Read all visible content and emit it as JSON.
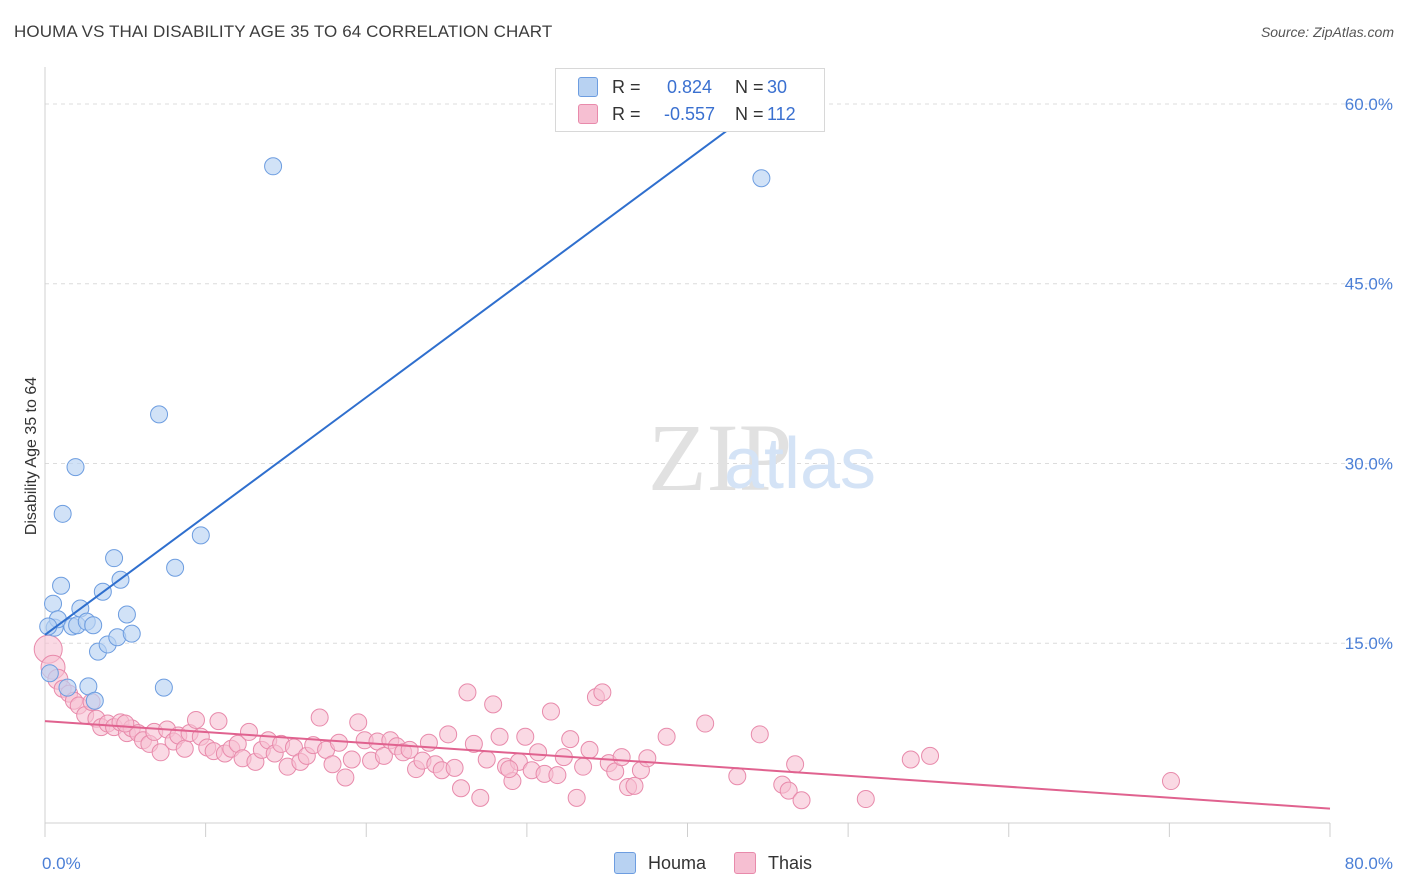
{
  "header": {
    "title": "HOUMA VS THAI DISABILITY AGE 35 TO 64 CORRELATION CHART",
    "source": "Source: ZipAtlas.com"
  },
  "watermark": {
    "zip": "ZIP",
    "atlas": "atlas"
  },
  "legend_top": {
    "houma": {
      "r_label": "R =",
      "r_value": "0.824",
      "n_label": "N =",
      "n_value": "30"
    },
    "thais": {
      "r_label": "R =",
      "r_value": "-0.557",
      "n_label": "N =",
      "n_value": "112"
    }
  },
  "legend_bottom": {
    "houma": "Houma",
    "thais": "Thais"
  },
  "colors": {
    "houma_fill": "#b8d2f2",
    "houma_stroke": "#6d9de0",
    "houma_line": "#2f6fce",
    "thais_fill": "#f6bfd2",
    "thais_stroke": "#e88aab",
    "thais_line": "#e0628f",
    "axis_text": "#4b7fd6",
    "grid": "#dcdcdc"
  },
  "chart_data": {
    "type": "scatter",
    "title": "HOUMA VS THAI DISABILITY AGE 35 TO 64 CORRELATION CHART",
    "xlabel": "",
    "ylabel": "Disability Age 35 to 64",
    "xlim": [
      0,
      80
    ],
    "ylim": [
      0,
      62
    ],
    "x_tick_labels": [
      "0.0%",
      "80.0%"
    ],
    "y_ticks": [
      15,
      30,
      45,
      60
    ],
    "y_tick_labels": [
      "15.0%",
      "30.0%",
      "45.0%",
      "60.0%"
    ],
    "grid": "horizontal dashed",
    "legend": "top-center",
    "series": [
      {
        "name": "Houma",
        "r": 0.824,
        "n": 30,
        "trend": [
          [
            0,
            15.7
          ],
          [
            44.5,
            59.8
          ]
        ],
        "points": [
          [
            0.3,
            12.5
          ],
          [
            0.5,
            18.3
          ],
          [
            0.6,
            16.3
          ],
          [
            0.8,
            17.0
          ],
          [
            1.0,
            19.8
          ],
          [
            1.1,
            25.8
          ],
          [
            1.4,
            11.3
          ],
          [
            1.7,
            16.4
          ],
          [
            1.9,
            29.7
          ],
          [
            2.0,
            16.5
          ],
          [
            2.2,
            17.9
          ],
          [
            2.6,
            16.8
          ],
          [
            2.7,
            11.4
          ],
          [
            3.0,
            16.5
          ],
          [
            3.1,
            10.2
          ],
          [
            3.3,
            14.3
          ],
          [
            3.6,
            19.3
          ],
          [
            3.9,
            14.9
          ],
          [
            4.3,
            22.1
          ],
          [
            4.5,
            15.5
          ],
          [
            4.7,
            20.3
          ],
          [
            5.1,
            17.4
          ],
          [
            5.4,
            15.8
          ],
          [
            7.1,
            34.1
          ],
          [
            7.4,
            11.3
          ],
          [
            8.1,
            21.3
          ],
          [
            9.7,
            24.0
          ],
          [
            14.2,
            54.8
          ],
          [
            44.6,
            53.8
          ],
          [
            0.2,
            16.4
          ]
        ]
      },
      {
        "name": "Thais",
        "r": -0.557,
        "n": 112,
        "trend": [
          [
            0,
            8.5
          ],
          [
            80,
            1.2
          ]
        ],
        "points": [
          [
            0.2,
            14.5
          ],
          [
            0.5,
            13.0
          ],
          [
            0.8,
            12.0
          ],
          [
            1.1,
            11.2
          ],
          [
            1.5,
            10.8
          ],
          [
            1.8,
            10.2
          ],
          [
            2.1,
            9.8
          ],
          [
            2.5,
            9.0
          ],
          [
            2.9,
            10.1
          ],
          [
            3.2,
            8.7
          ],
          [
            3.5,
            8.0
          ],
          [
            3.9,
            8.3
          ],
          [
            4.3,
            8.0
          ],
          [
            4.7,
            8.4
          ],
          [
            5.1,
            7.5
          ],
          [
            5.4,
            7.9
          ],
          [
            5.8,
            7.5
          ],
          [
            6.1,
            6.9
          ],
          [
            6.5,
            6.6
          ],
          [
            6.8,
            7.6
          ],
          [
            7.2,
            5.9
          ],
          [
            7.6,
            7.8
          ],
          [
            8.0,
            6.8
          ],
          [
            8.3,
            7.3
          ],
          [
            8.7,
            6.2
          ],
          [
            9.0,
            7.5
          ],
          [
            9.4,
            8.6
          ],
          [
            9.7,
            7.2
          ],
          [
            10.1,
            6.3
          ],
          [
            10.5,
            6.0
          ],
          [
            10.8,
            8.5
          ],
          [
            11.2,
            5.8
          ],
          [
            11.6,
            6.2
          ],
          [
            12.0,
            6.6
          ],
          [
            12.3,
            5.4
          ],
          [
            12.7,
            7.6
          ],
          [
            13.1,
            5.1
          ],
          [
            13.5,
            6.1
          ],
          [
            13.9,
            6.9
          ],
          [
            14.3,
            5.8
          ],
          [
            14.7,
            6.6
          ],
          [
            15.1,
            4.7
          ],
          [
            15.5,
            6.3
          ],
          [
            15.9,
            5.1
          ],
          [
            16.3,
            5.6
          ],
          [
            16.7,
            6.5
          ],
          [
            17.1,
            8.8
          ],
          [
            17.5,
            6.1
          ],
          [
            17.9,
            4.9
          ],
          [
            18.3,
            6.7
          ],
          [
            18.7,
            3.8
          ],
          [
            19.1,
            5.3
          ],
          [
            19.5,
            8.4
          ],
          [
            19.9,
            6.9
          ],
          [
            20.3,
            5.2
          ],
          [
            20.7,
            6.8
          ],
          [
            21.1,
            5.6
          ],
          [
            21.5,
            6.9
          ],
          [
            21.9,
            6.4
          ],
          [
            22.3,
            5.9
          ],
          [
            22.7,
            6.1
          ],
          [
            23.1,
            4.5
          ],
          [
            23.5,
            5.2
          ],
          [
            23.9,
            6.7
          ],
          [
            24.3,
            4.9
          ],
          [
            24.7,
            4.4
          ],
          [
            25.1,
            7.4
          ],
          [
            25.5,
            4.6
          ],
          [
            25.9,
            2.9
          ],
          [
            26.3,
            10.9
          ],
          [
            26.7,
            6.6
          ],
          [
            27.1,
            2.1
          ],
          [
            27.5,
            5.3
          ],
          [
            27.9,
            9.9
          ],
          [
            28.3,
            7.2
          ],
          [
            28.7,
            4.7
          ],
          [
            29.1,
            3.5
          ],
          [
            29.5,
            5.1
          ],
          [
            29.9,
            7.2
          ],
          [
            30.3,
            4.4
          ],
          [
            30.7,
            5.9
          ],
          [
            31.1,
            4.1
          ],
          [
            31.5,
            9.3
          ],
          [
            31.9,
            4.0
          ],
          [
            32.3,
            5.5
          ],
          [
            32.7,
            7.0
          ],
          [
            33.1,
            2.1
          ],
          [
            33.5,
            4.7
          ],
          [
            33.9,
            6.1
          ],
          [
            34.3,
            10.5
          ],
          [
            34.7,
            10.9
          ],
          [
            35.1,
            5.0
          ],
          [
            35.5,
            4.3
          ],
          [
            35.9,
            5.5
          ],
          [
            36.3,
            3.0
          ],
          [
            36.7,
            3.1
          ],
          [
            37.1,
            4.4
          ],
          [
            37.5,
            5.4
          ],
          [
            38.7,
            7.2
          ],
          [
            41.1,
            8.3
          ],
          [
            43.1,
            3.9
          ],
          [
            44.5,
            7.4
          ],
          [
            45.9,
            3.2
          ],
          [
            46.3,
            2.7
          ],
          [
            46.7,
            4.9
          ],
          [
            47.1,
            1.9
          ],
          [
            51.1,
            2.0
          ],
          [
            53.9,
            5.3
          ],
          [
            55.1,
            5.6
          ],
          [
            70.1,
            3.5
          ],
          [
            5.0,
            8.3
          ],
          [
            28.9,
            4.5
          ]
        ]
      }
    ]
  }
}
